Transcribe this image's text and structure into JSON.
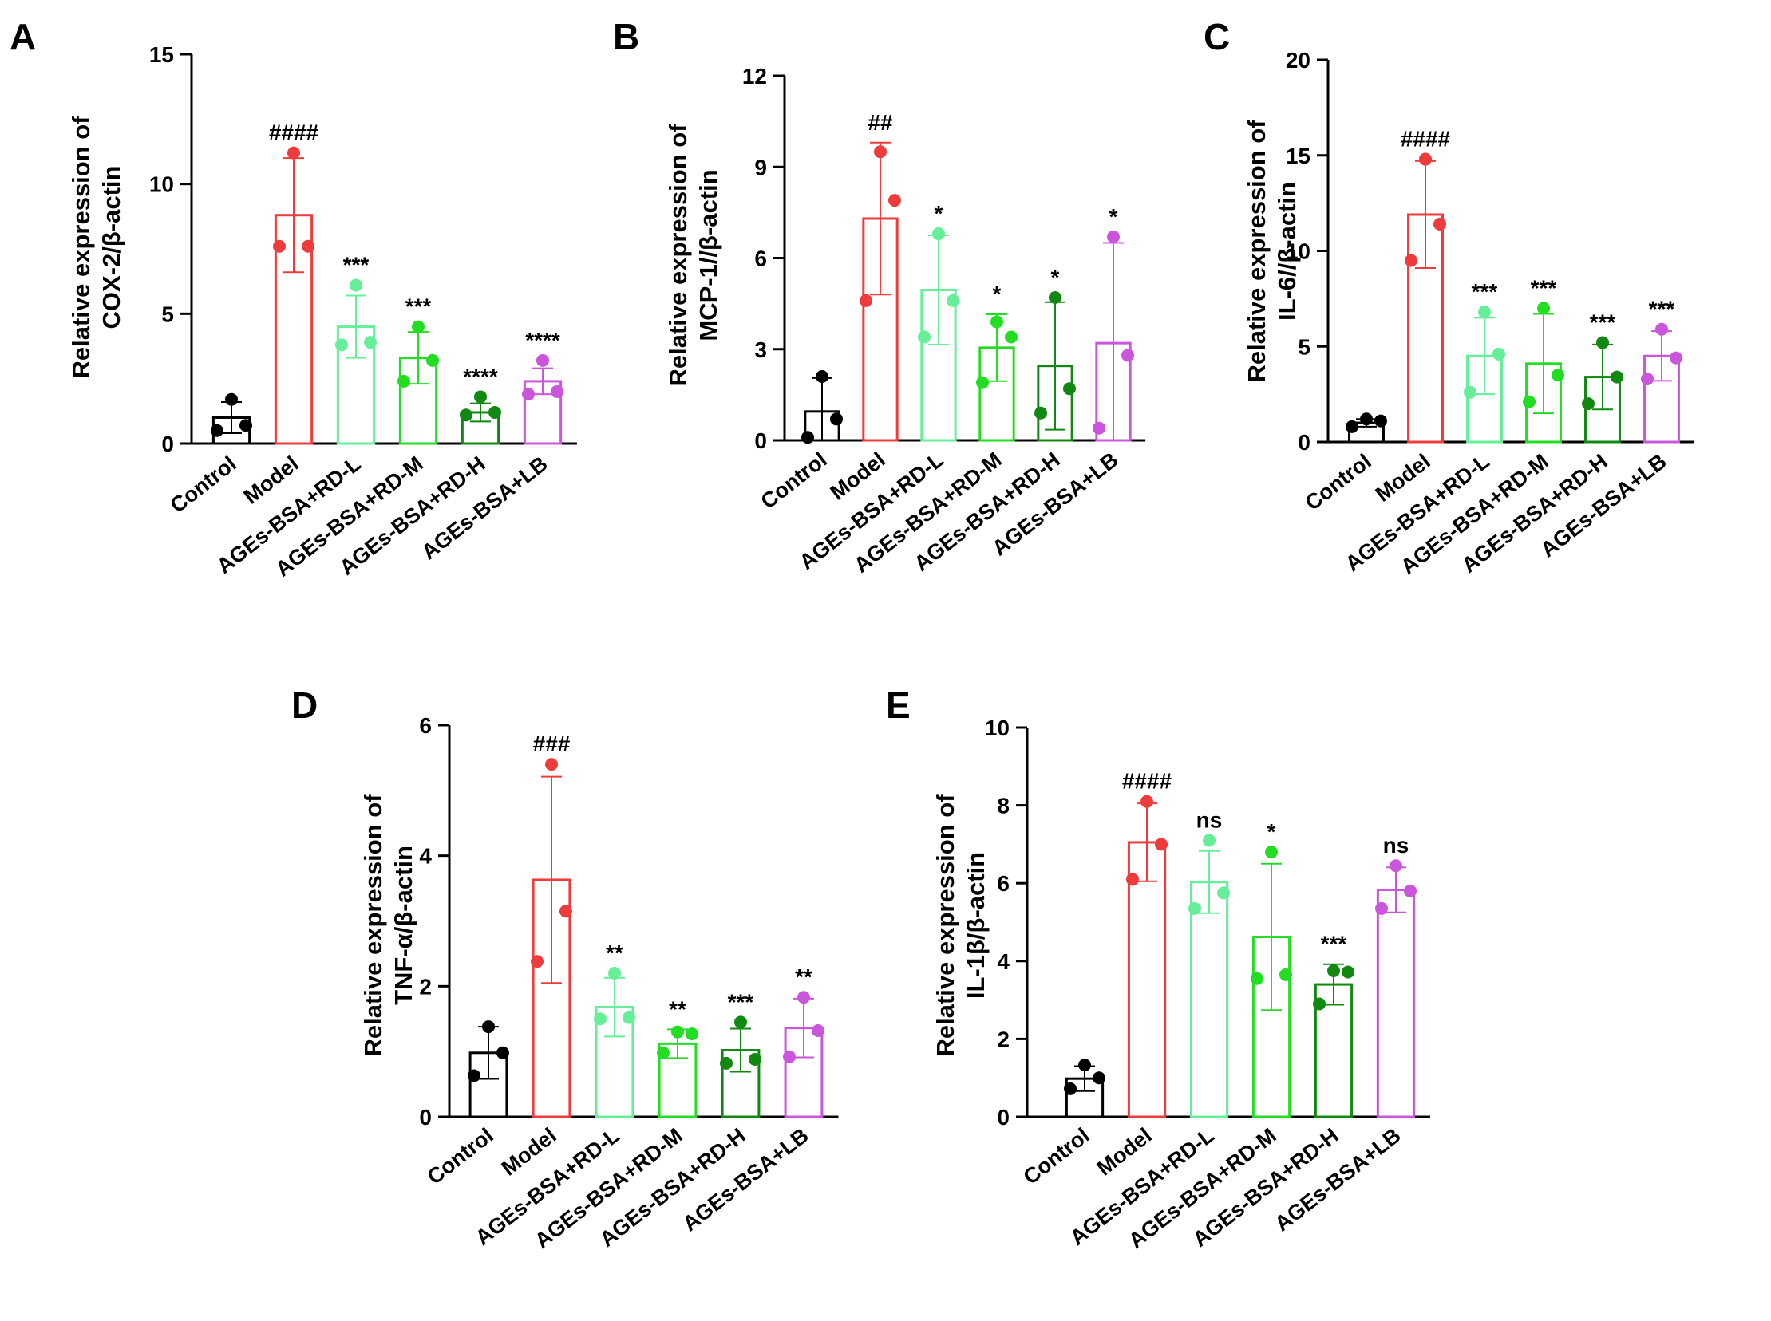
{
  "figure": {
    "categories": [
      "Control",
      "Model",
      "AGEs-BSA+RD-L",
      "AGEs-BSA+RD-M",
      "AGEs-BSA+RD-H",
      "AGEs-BSA+LB"
    ],
    "series_colors": [
      "#000000",
      "#ee3b3b",
      "#66ee99",
      "#22dd22",
      "#118811",
      "#cc55dd"
    ]
  },
  "chart_data": [
    {
      "type": "bar",
      "panel_label": "A",
      "ylabel_line1": "Relative expression of",
      "ylabel_line2": "COX-2/β-actin",
      "ylim": [
        0,
        15
      ],
      "yticks": [
        0,
        5,
        10,
        15
      ],
      "ytick_labels": [
        "0",
        "5",
        "10",
        "15"
      ],
      "categories": [
        "Control",
        "Model",
        "AGEs-BSA+RD-L",
        "AGEs-BSA+RD-M",
        "AGEs-BSA+RD-H",
        "AGEs-BSA+LB"
      ],
      "values": [
        1.0,
        8.8,
        4.5,
        3.3,
        1.2,
        2.4
      ],
      "errors": [
        0.6,
        2.2,
        1.2,
        1.0,
        0.35,
        0.5
      ],
      "points": [
        [
          0.5,
          0.7,
          1.7
        ],
        [
          7.6,
          7.6,
          11.2
        ],
        [
          3.8,
          3.9,
          6.1
        ],
        [
          2.4,
          3.2,
          4.5
        ],
        [
          1.1,
          1.2,
          1.8
        ],
        [
          1.9,
          2.0,
          3.2
        ]
      ],
      "annotations": [
        "",
        "####",
        "***",
        "***",
        "****",
        "****"
      ]
    },
    {
      "type": "bar",
      "panel_label": "B",
      "ylabel_line1": "Relative expression of",
      "ylabel_line2": "MCP-1//β-actin",
      "ylim": [
        0,
        12
      ],
      "yticks": [
        0,
        3,
        6,
        9,
        12
      ],
      "ytick_labels": [
        "0",
        "3",
        "6",
        "9",
        "12"
      ],
      "categories": [
        "Control",
        "Model",
        "AGEs-BSA+RD-L",
        "AGEs-BSA+RD-M",
        "AGEs-BSA+RD-H",
        "AGEs-BSA+LB"
      ],
      "values": [
        0.95,
        7.3,
        4.95,
        3.05,
        2.45,
        3.2
      ],
      "errors": [
        1.1,
        2.5,
        1.8,
        1.1,
        2.1,
        3.3
      ],
      "points": [
        [
          0.1,
          0.7,
          2.1
        ],
        [
          4.6,
          7.9,
          9.5
        ],
        [
          3.4,
          4.6,
          6.8
        ],
        [
          1.9,
          3.4,
          3.9
        ],
        [
          0.9,
          1.7,
          4.7
        ],
        [
          0.4,
          2.8,
          6.7
        ]
      ],
      "annotations": [
        "",
        "##",
        "*",
        "*",
        "*",
        "*"
      ]
    },
    {
      "type": "bar",
      "panel_label": "C",
      "ylabel_line1": "Relative expression of",
      "ylabel_line2": "IL-6//β-actin",
      "ylim": [
        0,
        20
      ],
      "yticks": [
        0,
        5,
        10,
        15,
        20
      ],
      "ytick_labels": [
        "0",
        "5",
        "10",
        "15",
        "20"
      ],
      "categories": [
        "Control",
        "Model",
        "AGEs-BSA+RD-L",
        "AGEs-BSA+RD-M",
        "AGEs-BSA+RD-H",
        "AGEs-BSA+LB"
      ],
      "values": [
        1.0,
        11.9,
        4.5,
        4.1,
        3.4,
        4.5
      ],
      "errors": [
        0.2,
        2.8,
        2.0,
        2.6,
        1.7,
        1.3
      ],
      "points": [
        [
          0.8,
          1.1,
          1.2
        ],
        [
          9.5,
          11.4,
          14.8
        ],
        [
          2.6,
          4.6,
          6.8
        ],
        [
          2.1,
          3.5,
          7.0
        ],
        [
          2.0,
          3.4,
          5.2
        ],
        [
          3.3,
          4.4,
          5.9
        ]
      ],
      "annotations": [
        "",
        "####",
        "***",
        "***",
        "***",
        "***"
      ]
    },
    {
      "type": "bar",
      "panel_label": "D",
      "ylabel_line1": "Relative expression of",
      "ylabel_line2": "TNF-α/β-actin",
      "ylim": [
        0,
        6
      ],
      "yticks": [
        0,
        2,
        4,
        6
      ],
      "ytick_labels": [
        "0",
        "2",
        "4",
        "6"
      ],
      "categories": [
        "Control",
        "Model",
        "AGEs-BSA+RD-L",
        "AGEs-BSA+RD-M",
        "AGEs-BSA+RD-H",
        "AGEs-BSA+LB"
      ],
      "values": [
        0.98,
        3.63,
        1.68,
        1.12,
        1.02,
        1.36
      ],
      "errors": [
        0.4,
        1.58,
        0.45,
        0.22,
        0.33,
        0.45
      ],
      "points": [
        [
          0.63,
          0.98,
          1.38
        ],
        [
          2.38,
          3.15,
          5.4
        ],
        [
          1.5,
          1.52,
          2.2
        ],
        [
          0.98,
          1.27,
          1.3
        ],
        [
          0.82,
          0.88,
          1.45
        ],
        [
          0.92,
          1.32,
          1.83
        ]
      ],
      "annotations": [
        "",
        "###",
        "**",
        "**",
        "***",
        "**"
      ]
    },
    {
      "type": "bar",
      "panel_label": "E",
      "ylabel_line1": "Relative expression of",
      "ylabel_line2": "IL-1β/β-actin",
      "ylim": [
        0,
        10
      ],
      "yticks": [
        0,
        2,
        4,
        6,
        8,
        10
      ],
      "ytick_labels": [
        "0",
        "2",
        "4",
        "6",
        "8",
        "10"
      ],
      "categories": [
        "Control",
        "Model",
        "AGEs-BSA+RD-L",
        "AGEs-BSA+RD-M",
        "AGEs-BSA+RD-H",
        "AGEs-BSA+LB"
      ],
      "values": [
        0.98,
        7.05,
        6.03,
        4.62,
        3.4,
        5.83
      ],
      "errors": [
        0.32,
        1.0,
        0.8,
        1.88,
        0.52,
        0.58
      ],
      "points": [
        [
          0.72,
          1.0,
          1.33
        ],
        [
          6.1,
          7.0,
          8.1
        ],
        [
          5.35,
          5.75,
          7.1
        ],
        [
          3.55,
          3.65,
          6.8
        ],
        [
          2.9,
          3.72,
          3.75
        ],
        [
          5.35,
          5.8,
          6.45
        ]
      ],
      "annotations": [
        "",
        "####",
        "ns",
        "*",
        "***",
        "ns"
      ]
    }
  ]
}
